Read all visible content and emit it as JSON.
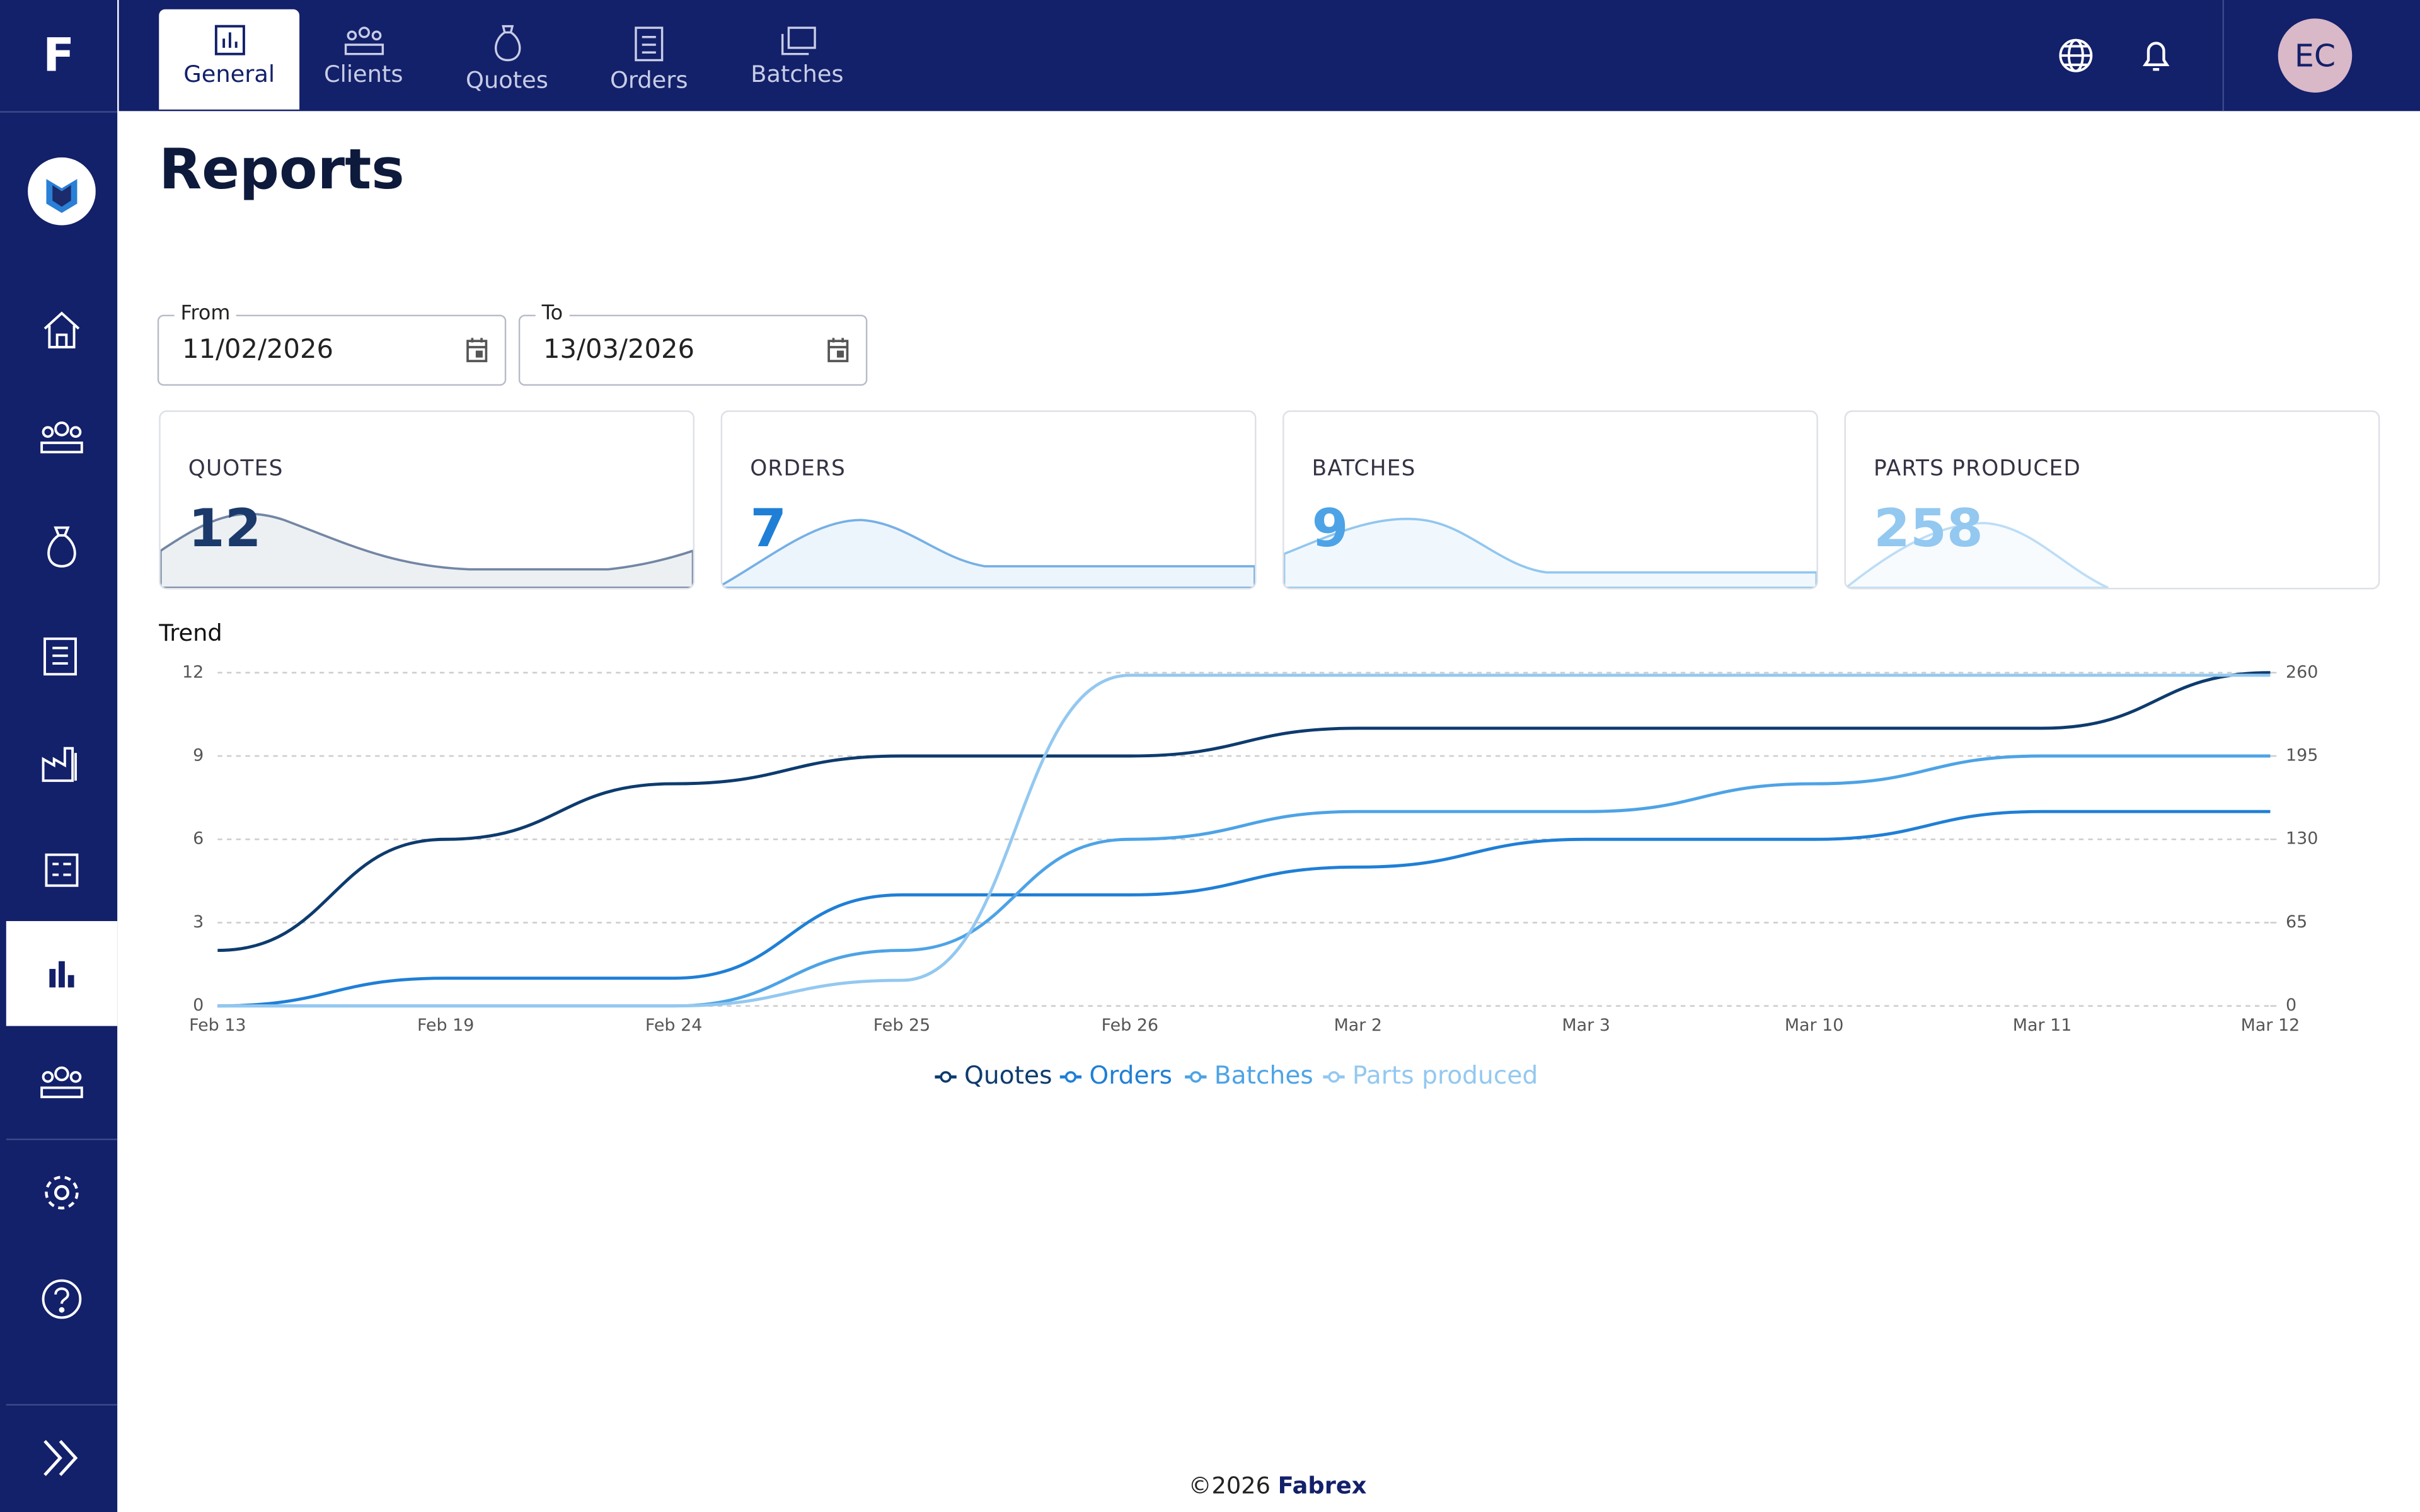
{
  "nav": {
    "logo": "F",
    "tabs": [
      "General",
      "Clients",
      "Quotes",
      "Orders",
      "Batches"
    ],
    "avatar": "EC"
  },
  "header": {
    "title": "Reports"
  },
  "filters": {
    "from": {
      "label": "From",
      "value": "11/02/2026"
    },
    "to": {
      "label": "To",
      "value": "13/03/2026"
    }
  },
  "cards": [
    {
      "label": "QUOTES",
      "value": 12,
      "color": "#1b3a6b"
    },
    {
      "label": "ORDERS",
      "value": 7,
      "color": "#1f7fd6"
    },
    {
      "label": "BATCHES",
      "value": 9,
      "color": "#4da3e6"
    },
    {
      "label": "PARTS PRODUCED",
      "value": 258,
      "color": "#93c8f0"
    }
  ],
  "chart_data": {
    "type": "line",
    "title": "Trend",
    "categories": [
      "Feb 13",
      "Feb 19",
      "Feb 24",
      "Feb 25",
      "Feb 26",
      "Mar 2",
      "Mar 3",
      "Mar 10",
      "Mar 11",
      "Mar 12"
    ],
    "series": [
      {
        "name": "Quotes",
        "color": "#0d3b6e",
        "values": [
          2,
          6,
          8,
          9,
          9,
          10,
          10,
          10,
          10,
          12
        ]
      },
      {
        "name": "Orders",
        "color": "#1f7fd6",
        "values": [
          0,
          1,
          1,
          4,
          4,
          5,
          6,
          6,
          7,
          7
        ]
      },
      {
        "name": "Batches",
        "color": "#4da3e6",
        "values": [
          0,
          0,
          0,
          2,
          6,
          7,
          7,
          8,
          9,
          9
        ]
      },
      {
        "name": "Parts produced",
        "color": "#93c8f0",
        "axis": "y2",
        "values": [
          0,
          0,
          0,
          20,
          258,
          258,
          258,
          258,
          258,
          258
        ]
      }
    ],
    "ylim": [
      0,
      12
    ],
    "yticks": [
      0,
      3,
      6,
      9,
      12
    ],
    "y2lim": [
      0,
      260
    ],
    "y2ticks": [
      0,
      65,
      130,
      195,
      260
    ],
    "grid": true
  },
  "footer": {
    "copyright": "©2026",
    "brand": "Fabrex"
  }
}
